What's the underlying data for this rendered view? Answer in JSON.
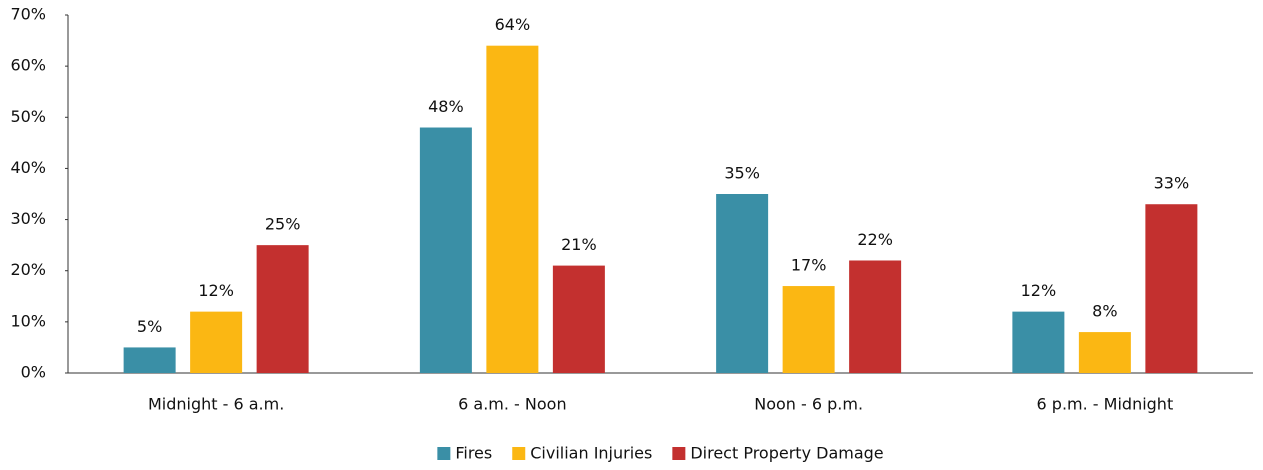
{
  "chart_data": {
    "type": "bar",
    "categories": [
      "Midnight - 6 a.m.",
      "6 a.m. - Noon",
      "Noon - 6 p.m.",
      "6 p.m. - Midnight"
    ],
    "series": [
      {
        "name": "Fires",
        "color": "#3a8fa6",
        "values": [
          5,
          48,
          35,
          12
        ],
        "value_labels": [
          "5%",
          "48%",
          "35%",
          "12%"
        ]
      },
      {
        "name": "Civilian Injuries",
        "color": "#fbb713",
        "values": [
          12,
          64,
          17,
          8
        ],
        "value_labels": [
          "12%",
          "64%",
          "17%",
          "8%"
        ]
      },
      {
        "name": "Direct Property Damage",
        "color": "#c3302f",
        "values": [
          25,
          21,
          22,
          33
        ],
        "value_labels": [
          "25%",
          "21%",
          "22%",
          "33%"
        ]
      }
    ],
    "ylim": [
      0,
      70
    ],
    "yticks": [
      {
        "value": 0,
        "label": "0%"
      },
      {
        "value": 10,
        "label": "10%"
      },
      {
        "value": 20,
        "label": "20%"
      },
      {
        "value": 30,
        "label": "30%"
      },
      {
        "value": 40,
        "label": "40%"
      },
      {
        "value": 50,
        "label": "50%"
      },
      {
        "value": 60,
        "label": "60%"
      },
      {
        "value": 70,
        "label": "70%"
      }
    ],
    "legend": "bottom"
  }
}
